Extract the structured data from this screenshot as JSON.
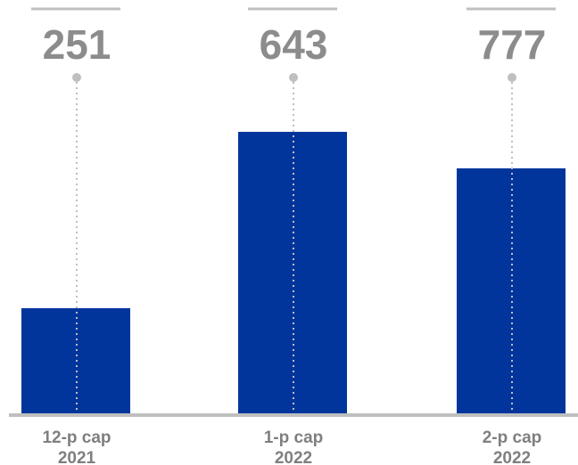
{
  "chart_data": {
    "type": "bar",
    "categories": [
      [
        "12-p cap",
        "2021"
      ],
      [
        "1-p cap",
        "2022"
      ],
      [
        "2-p cap",
        "2022"
      ]
    ],
    "values": [
      251,
      643,
      777
    ],
    "bar_color": "#01359C",
    "value_label_color": "#8C8C8C",
    "tick_label_color": "#7F7F7F",
    "connector_color": "#BFBFBF",
    "axis_color": "#BFBFBF",
    "grid": false,
    "legend": "none"
  }
}
